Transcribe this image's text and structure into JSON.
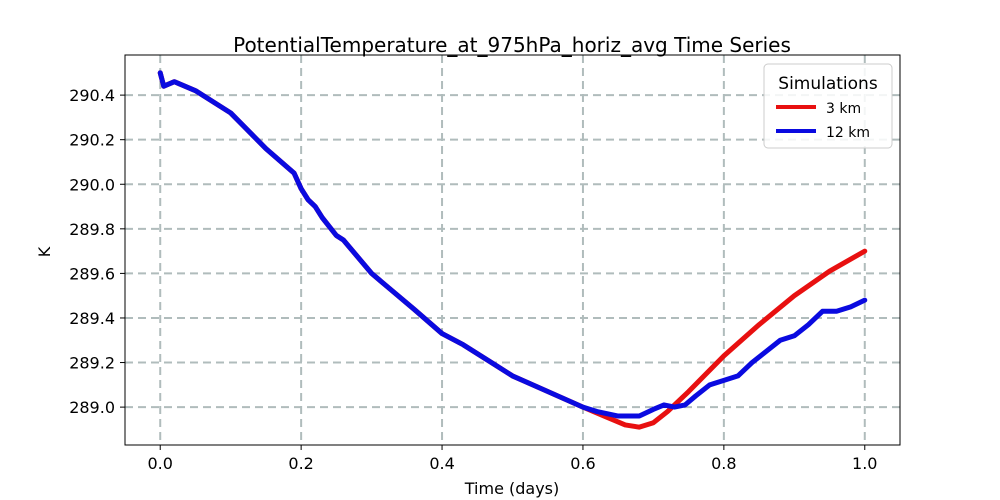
{
  "chart_data": {
    "type": "line",
    "title": "PotentialTemperature_at_975hPa_horiz_avg Time Series",
    "xlabel": "Time (days)",
    "ylabel": "K",
    "xlim": [
      -0.05,
      1.05
    ],
    "ylim": [
      288.83,
      290.58
    ],
    "xticks": [
      0.0,
      0.2,
      0.4,
      0.6,
      0.8,
      1.0
    ],
    "xtick_labels": [
      "0.0",
      "0.2",
      "0.4",
      "0.6",
      "0.8",
      "1.0"
    ],
    "yticks": [
      289.0,
      289.2,
      289.4,
      289.6,
      289.8,
      290.0,
      290.2,
      290.4
    ],
    "ytick_labels": [
      "289.0",
      "289.2",
      "289.4",
      "289.6",
      "289.8",
      "290.0",
      "290.2",
      "290.4"
    ],
    "grid": true,
    "legend": {
      "title": "Simulations",
      "placement": "top-right"
    },
    "series": [
      {
        "name": "3 km",
        "color": "#e81010",
        "x": [
          0.0,
          0.005,
          0.02,
          0.05,
          0.1,
          0.15,
          0.19,
          0.2,
          0.21,
          0.22,
          0.23,
          0.25,
          0.26,
          0.3,
          0.33,
          0.36,
          0.4,
          0.43,
          0.47,
          0.5,
          0.55,
          0.6,
          0.63,
          0.66,
          0.68,
          0.7,
          0.72,
          0.75,
          0.8,
          0.85,
          0.9,
          0.95,
          1.0
        ],
        "y": [
          290.5,
          290.44,
          290.46,
          290.42,
          290.32,
          290.16,
          290.05,
          289.98,
          289.93,
          289.9,
          289.85,
          289.77,
          289.75,
          289.6,
          289.52,
          289.44,
          289.33,
          289.28,
          289.2,
          289.14,
          289.07,
          289.0,
          288.96,
          288.92,
          288.91,
          288.93,
          288.98,
          289.07,
          289.23,
          289.37,
          289.5,
          289.61,
          289.7
        ]
      },
      {
        "name": "12 km",
        "color": "#0a0ae0",
        "x": [
          0.0,
          0.005,
          0.02,
          0.05,
          0.1,
          0.15,
          0.19,
          0.2,
          0.21,
          0.22,
          0.23,
          0.25,
          0.26,
          0.3,
          0.33,
          0.36,
          0.4,
          0.43,
          0.47,
          0.5,
          0.55,
          0.6,
          0.62,
          0.65,
          0.68,
          0.7,
          0.715,
          0.73,
          0.745,
          0.76,
          0.78,
          0.8,
          0.82,
          0.84,
          0.86,
          0.88,
          0.9,
          0.92,
          0.94,
          0.96,
          0.98,
          1.0
        ],
        "y": [
          290.5,
          290.44,
          290.46,
          290.42,
          290.32,
          290.16,
          290.05,
          289.98,
          289.93,
          289.9,
          289.85,
          289.77,
          289.75,
          289.6,
          289.52,
          289.44,
          289.33,
          289.28,
          289.2,
          289.14,
          289.07,
          289.0,
          288.98,
          288.96,
          288.96,
          288.99,
          289.01,
          289.0,
          289.01,
          289.05,
          289.1,
          289.12,
          289.14,
          289.2,
          289.25,
          289.3,
          289.32,
          289.37,
          289.43,
          289.43,
          289.45,
          289.48
        ]
      }
    ]
  }
}
